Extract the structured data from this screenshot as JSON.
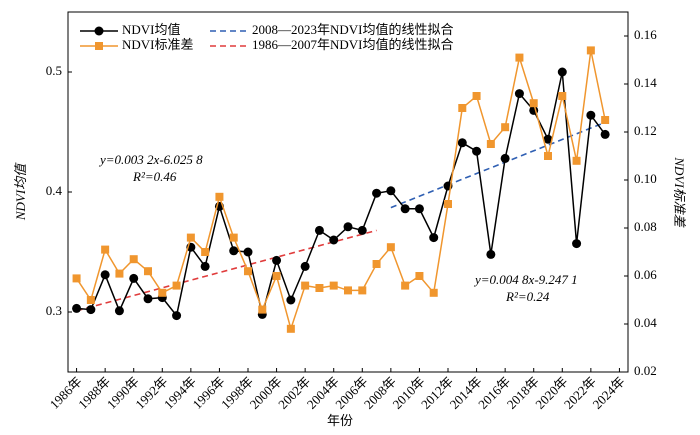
{
  "chart_data": {
    "type": "line",
    "x": [
      1986,
      1987,
      1988,
      1989,
      1990,
      1991,
      1992,
      1993,
      1994,
      1995,
      1996,
      1997,
      1998,
      1999,
      2000,
      2001,
      2002,
      2003,
      2004,
      2005,
      2006,
      2007,
      2008,
      2009,
      2010,
      2011,
      2012,
      2013,
      2014,
      2015,
      2016,
      2017,
      2018,
      2019,
      2020,
      2021,
      2022,
      2023
    ],
    "series": [
      {
        "name": "NDVI均值",
        "color": "#000000",
        "marker": "circle",
        "values": [
          0.303,
          0.302,
          0.331,
          0.301,
          0.328,
          0.311,
          0.312,
          0.297,
          0.354,
          0.338,
          0.388,
          0.351,
          0.35,
          0.298,
          0.343,
          0.31,
          0.338,
          0.368,
          0.36,
          0.371,
          0.368,
          0.399,
          0.401,
          0.386,
          0.386,
          0.362,
          0.405,
          0.441,
          0.434,
          0.348,
          0.428,
          0.482,
          0.468,
          0.444,
          0.5,
          0.357,
          0.464,
          0.448
        ]
      },
      {
        "name": "NDVI标准差",
        "color": "#f0962e",
        "marker": "square",
        "axis": "y2",
        "values": [
          0.059,
          0.05,
          0.071,
          0.061,
          0.067,
          0.062,
          0.053,
          0.056,
          0.076,
          0.07,
          0.093,
          0.076,
          0.062,
          0.046,
          0.06,
          0.038,
          0.056,
          0.055,
          0.056,
          0.054,
          0.054,
          0.065,
          0.072,
          0.056,
          0.06,
          0.053,
          0.09,
          0.13,
          0.135,
          0.115,
          0.122,
          0.151,
          0.132,
          0.11,
          0.135,
          0.108,
          0.154,
          0.125
        ]
      }
    ],
    "fit_lines": [
      {
        "name": "2008—2023年NDVI均值的线性拟合",
        "color": "#2f5fb3",
        "x": [
          2008,
          2023
        ],
        "values": [
          0.387,
          0.458
        ]
      },
      {
        "name": "1986—2007年NDVI均值的线性拟合",
        "color": "#e03c3c",
        "x": [
          1986,
          2007
        ],
        "values": [
          0.301,
          0.368
        ]
      }
    ],
    "annotations": [
      "y=0.003 2x-6.025 8",
      "R²=0.46",
      "y=0.004 8x-9.247 1",
      "R²=0.24"
    ],
    "xlabel": "年份",
    "ylabel": "NDVI均值",
    "y2label": "NDVI标准差",
    "xlim": [
      1985.4,
      2024.6
    ],
    "xticks": [
      {
        "value": 1986,
        "label": "1986年"
      },
      {
        "value": 1988,
        "label": "1988年"
      },
      {
        "value": 1990,
        "label": "1990年"
      },
      {
        "value": 1992,
        "label": "1992年"
      },
      {
        "value": 1994,
        "label": "1994年"
      },
      {
        "value": 1996,
        "label": "1996年"
      },
      {
        "value": 1998,
        "label": "1998年"
      },
      {
        "value": 2000,
        "label": "2000年"
      },
      {
        "value": 2002,
        "label": "2002年"
      },
      {
        "value": 2004,
        "label": "2004年"
      },
      {
        "value": 2006,
        "label": "2006年"
      },
      {
        "value": 2008,
        "label": "2008年"
      },
      {
        "value": 2010,
        "label": "2010年"
      },
      {
        "value": 2012,
        "label": "2012年"
      },
      {
        "value": 2014,
        "label": "2014年"
      },
      {
        "value": 2016,
        "label": "2016年"
      },
      {
        "value": 2018,
        "label": "2018年"
      },
      {
        "value": 2020,
        "label": "2020年"
      },
      {
        "value": 2022,
        "label": "2022年"
      },
      {
        "value": 2024,
        "label": "2024年"
      }
    ],
    "ylim": [
      0.25,
      0.55
    ],
    "yticks": [
      0.3,
      0.4,
      0.5
    ],
    "y2lim": [
      0.02,
      0.17
    ],
    "y2ticks": [
      0.02,
      0.04,
      0.06,
      0.08,
      {
        "value": 0.1,
        "label": "0.10"
      },
      0.12,
      0.14,
      0.16
    ]
  }
}
